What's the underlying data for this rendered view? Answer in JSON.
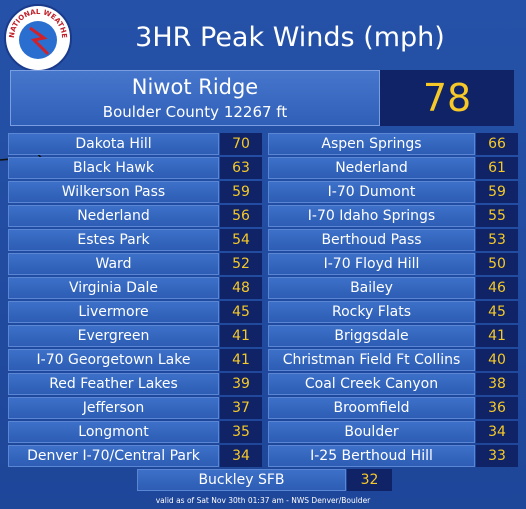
{
  "header": {
    "title": "3HR Peak Winds (mph)",
    "logo_text": "NATIONAL WEATHER SERVICE"
  },
  "featured": {
    "name": "Niwot Ridge",
    "detail": "Boulder County 12267 ft",
    "value": "78"
  },
  "left_column": [
    [
      "Dakota Hill",
      "70"
    ],
    [
      "Black Hawk",
      "63"
    ],
    [
      "Wilkerson Pass",
      "59"
    ],
    [
      "Nederland",
      "56"
    ],
    [
      "Estes Park",
      "54"
    ],
    [
      "Ward",
      "52"
    ],
    [
      "Virginia Dale",
      "48"
    ],
    [
      "Livermore",
      "45"
    ],
    [
      "Evergreen",
      "41"
    ],
    [
      "I-70 Georgetown Lake",
      "41"
    ],
    [
      "Red Feather Lakes",
      "39"
    ],
    [
      "Jefferson",
      "37"
    ],
    [
      "Longmont",
      "35"
    ],
    [
      "Denver I-70/Central Park",
      "34"
    ]
  ],
  "right_column": [
    [
      "Aspen Springs",
      "66"
    ],
    [
      "Nederland",
      "61"
    ],
    [
      "I-70 Dumont",
      "59"
    ],
    [
      "I-70 Idaho Springs",
      "55"
    ],
    [
      "Berthoud Pass",
      "53"
    ],
    [
      "I-70 Floyd Hill",
      "50"
    ],
    [
      "Bailey",
      "46"
    ],
    [
      "Rocky Flats",
      "45"
    ],
    [
      "Briggsdale",
      "41"
    ],
    [
      "Christman Field Ft Collins",
      "40"
    ],
    [
      "Coal Creek Canyon",
      "38"
    ],
    [
      "Broomfield",
      "36"
    ],
    [
      "Boulder",
      "34"
    ],
    [
      "I-25 Berthoud Hill",
      "33"
    ]
  ],
  "bottom_row": [
    "Buckley SFB",
    "32"
  ],
  "footnote": "valid as of Sat Nov 30th 01:37 am - NWS Denver/Boulder"
}
